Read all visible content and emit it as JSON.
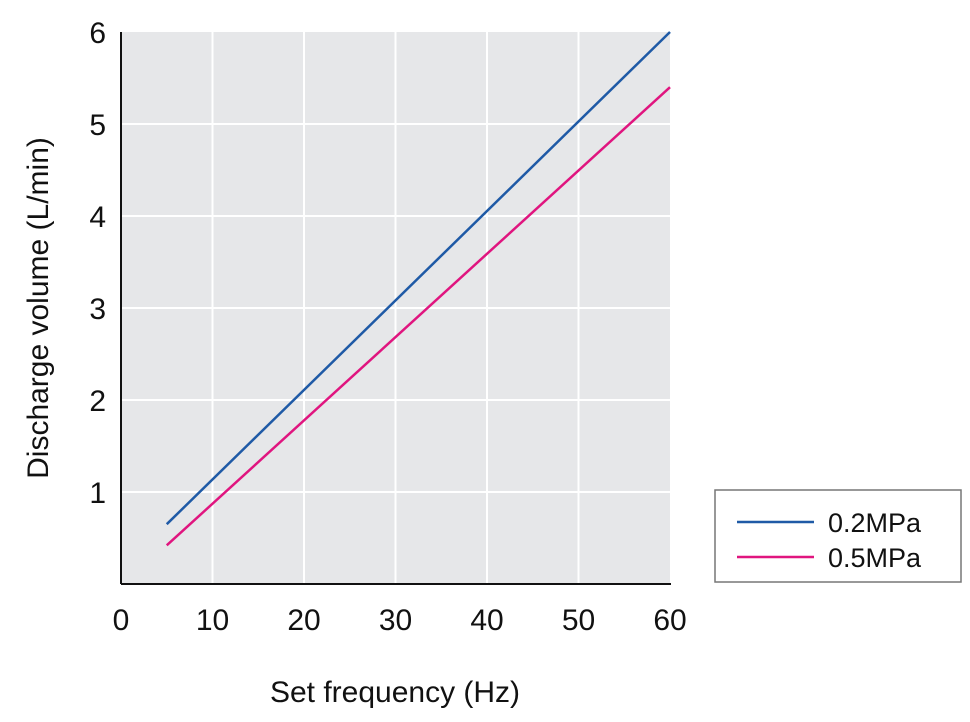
{
  "chart_data": {
    "type": "line",
    "xlabel": "Set frequency (Hz)",
    "ylabel": "Discharge volume (L/min)",
    "xlim": [
      0,
      60
    ],
    "ylim": [
      0,
      6
    ],
    "x_ticks": [
      "0",
      "10",
      "20",
      "30",
      "40",
      "50",
      "60"
    ],
    "y_ticks": [
      "1",
      "2",
      "3",
      "4",
      "5",
      "6"
    ],
    "grid": true,
    "legend_position": "right",
    "plot_background": "#e6e7e9",
    "series": [
      {
        "name": "0.2MPa",
        "color": "#1f5aa6",
        "x": [
          5,
          60
        ],
        "y": [
          0.65,
          6.0
        ]
      },
      {
        "name": "0.5MPa",
        "color": "#e0157f",
        "x": [
          5,
          60
        ],
        "y": [
          0.42,
          5.4
        ]
      }
    ]
  }
}
